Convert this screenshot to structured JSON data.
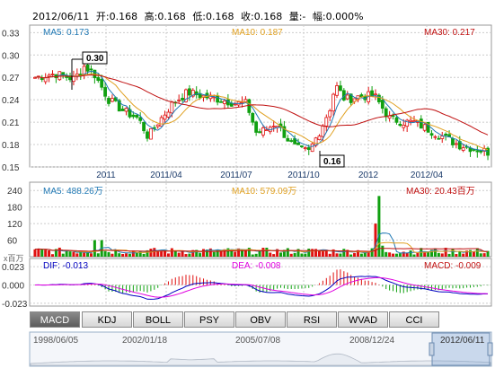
{
  "header": {
    "date": "2012/06/11",
    "open": "开:0.168",
    "high": "高:0.168",
    "low": "低:0.168",
    "close": "收:0.168",
    "volume": "量:-",
    "change": "幅:0.000%"
  },
  "colors": {
    "up": "#e01010",
    "down": "#10a010",
    "ma5": "#1f78b4",
    "ma10": "#e0a020",
    "ma30": "#c01010",
    "dif": "#0000c0",
    "dea": "#e000e0",
    "grid": "#cccccc",
    "label_blue": "#1070c0"
  },
  "price_panel": {
    "ma5": "MA5: 0.173",
    "ma10": "MA10: 0.187",
    "ma30": "MA30: 0.217",
    "y_ticks": [
      "0.33",
      "0.30",
      "0.27",
      "0.24",
      "0.21",
      "0.18",
      "0.15"
    ],
    "x_ticks": [
      "2011",
      "2011/04",
      "2011/07",
      "2011/10",
      "2012",
      "2012/04"
    ],
    "high_callout": "0.30",
    "low_callout": "0.16"
  },
  "volume_panel": {
    "ma5": "MA5: 488.26万",
    "ma10": "MA10: 579.09万",
    "ma30": "MA30: 20.43百万",
    "unit": "x百万",
    "y_ticks": [
      "240",
      "180",
      "120",
      "60"
    ]
  },
  "macd_panel": {
    "dif": "DIF: -0.013",
    "dea": "DEA: -0.008",
    "macd": "MACD: -0.009",
    "y_ticks": [
      "0.023",
      "0.000",
      "-0.023"
    ]
  },
  "indicator_tabs": [
    "MACD",
    "KDJ",
    "BOLL",
    "PSY",
    "OBV",
    "RSI",
    "WVAD",
    "CCI"
  ],
  "active_tab": "MACD",
  "timeline": {
    "labels": [
      "1998/06/05",
      "2002/01/18",
      "2005/07/08",
      "2008/12/24",
      "2012/06/11"
    ]
  }
}
